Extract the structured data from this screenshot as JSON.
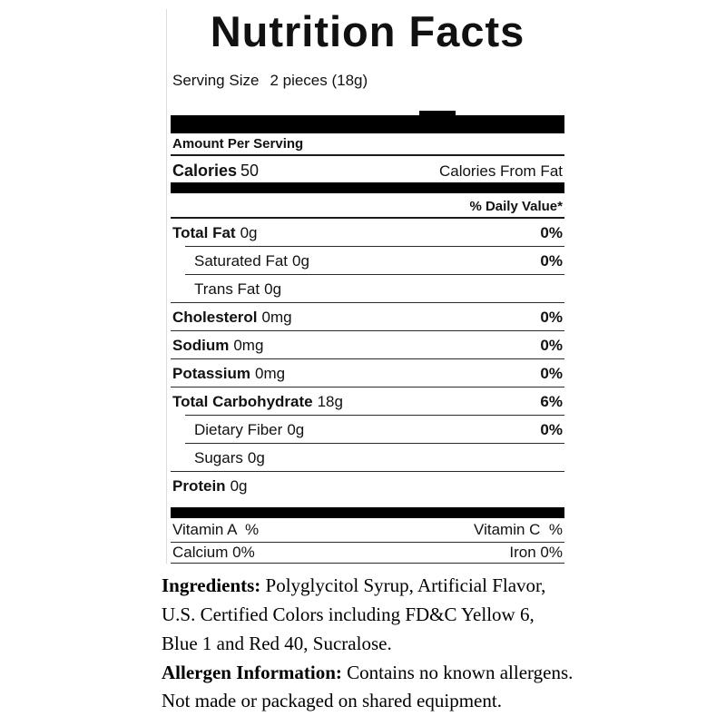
{
  "label": {
    "title": "Nutrition Facts",
    "serving": {
      "label": "Serving Size",
      "value": "2 pieces (18g)"
    },
    "amount_per_serving": "Amount Per Serving",
    "calories": {
      "label": "Calories",
      "value": "50",
      "from_fat_label": "Calories From Fat"
    },
    "daily_value_header": "% Daily Value*",
    "rows": [
      {
        "name": "Total Fat",
        "amount": "0g",
        "dv": "0%"
      },
      {
        "name": "Saturated Fat",
        "amount": "0g",
        "dv": "0%"
      },
      {
        "name": "Trans Fat",
        "amount": "0g",
        "dv": ""
      },
      {
        "name": "Cholesterol",
        "amount": "0mg",
        "dv": "0%"
      },
      {
        "name": "Sodium",
        "amount": "0mg",
        "dv": "0%"
      },
      {
        "name": "Potassium",
        "amount": "0mg",
        "dv": "0%"
      },
      {
        "name": "Total Carbohydrate",
        "amount": "18g",
        "dv": "6%"
      },
      {
        "name": "Dietary Fiber",
        "amount": "0g",
        "dv": "0%"
      },
      {
        "name": "Sugars",
        "amount": "0g",
        "dv": ""
      },
      {
        "name": "Protein",
        "amount": "0g",
        "dv": ""
      }
    ],
    "vitamins": [
      {
        "left": "Vitamin A  %",
        "right": "Vitamin C  %"
      },
      {
        "left": "Calcium 0%",
        "right": "Iron 0%"
      }
    ]
  },
  "ingredients": {
    "line1_prefix": "Ingredients:",
    "line1_rest": " Polyglycitol Syrup, Artificial Flavor,",
    "line2": "U.S. Certified Colors including FD&C Yellow 6,",
    "line3": "Blue 1 and Red 40, Sucralose."
  },
  "allergen": {
    "line1_prefix": "Allergen Information:",
    "line1_rest": " Contains no known allergens.",
    "line2": "Not made or packaged on shared equipment."
  },
  "colors": {
    "bar": "#000000",
    "rule": "#2b2b2b",
    "text": "#111111"
  }
}
